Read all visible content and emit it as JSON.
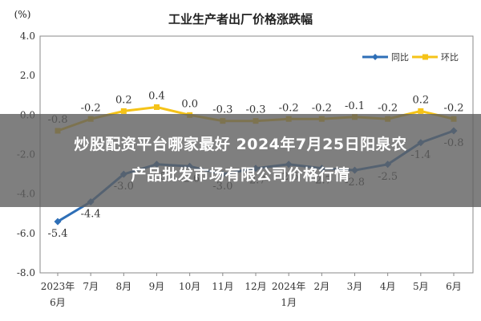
{
  "chart_data": {
    "type": "line",
    "title": "工业生产者出厂价格涨跌幅",
    "ylabel": "(%)",
    "ylim": [
      -8.0,
      4.0
    ],
    "yticks": [
      "4.0",
      "2.0",
      "0.0",
      "-2.0",
      "-4.0",
      "-6.0",
      "-8.0"
    ],
    "categories": [
      {
        "top": "2023年",
        "bottom": "6月"
      },
      {
        "top": "7月",
        "bottom": ""
      },
      {
        "top": "8月",
        "bottom": ""
      },
      {
        "top": "9月",
        "bottom": ""
      },
      {
        "top": "10月",
        "bottom": ""
      },
      {
        "top": "11月",
        "bottom": ""
      },
      {
        "top": "12月",
        "bottom": ""
      },
      {
        "top": "2024年",
        "bottom": "1月"
      },
      {
        "top": "2月",
        "bottom": ""
      },
      {
        "top": "3月",
        "bottom": ""
      },
      {
        "top": "4月",
        "bottom": ""
      },
      {
        "top": "5月",
        "bottom": ""
      },
      {
        "top": "6月",
        "bottom": ""
      }
    ],
    "series": [
      {
        "name": "同比",
        "color": "#2e6fb7",
        "values": [
          -5.4,
          -4.4,
          -3.0,
          -2.5,
          -2.6,
          -3.0,
          -2.7,
          -2.5,
          -2.7,
          -2.8,
          -2.5,
          -1.4,
          -0.8
        ],
        "labels": [
          "-5.4",
          "-4.4",
          "-3.0",
          "-2.5",
          "-2.6",
          "-3.0",
          "-2.7",
          "-2.5",
          "-2.7",
          "-2.8",
          "-2.5",
          "-1.4",
          "-0.8"
        ]
      },
      {
        "name": "环比",
        "color": "#f5c318",
        "values": [
          -0.8,
          -0.2,
          0.2,
          0.4,
          0.0,
          -0.3,
          -0.3,
          -0.2,
          -0.2,
          -0.1,
          -0.2,
          0.2,
          -0.2
        ],
        "labels": [
          "-0.8",
          "-0.2",
          "0.2",
          "0.4",
          "0.0",
          "-0.3",
          "-0.3",
          "-0.2",
          "-0.2",
          "-0.1",
          "-0.2",
          "0.2",
          "-0.2"
        ]
      }
    ],
    "grid": false,
    "legend": "top-right"
  },
  "banner": {
    "line1": "炒股配资平台哪家最好 2024年7月25日阳泉农",
    "line2": "产品批发市场有限公司价格行情"
  }
}
